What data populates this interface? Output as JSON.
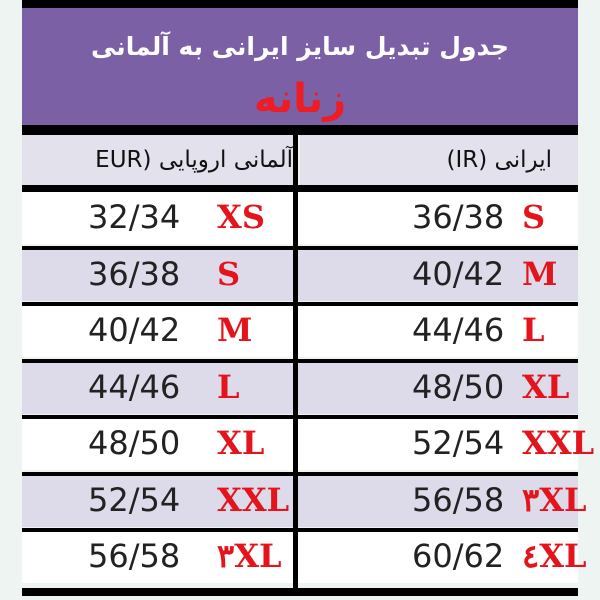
{
  "title": "جدول تبدیل سایز ایرانی به آلمانی",
  "subtitle": "زنانه",
  "columns": {
    "german": "آلمانی اروپایی (EUR",
    "iranian": "ایرانی (IR)"
  },
  "rows": [
    {
      "german_size": "32/34",
      "german_label": "XS",
      "iran_size": "36/38",
      "iran_label": "S"
    },
    {
      "german_size": "36/38",
      "german_label": "S",
      "iran_size": "40/42",
      "iran_label": "M"
    },
    {
      "german_size": "40/42",
      "german_label": "M",
      "iran_size": "44/46",
      "iran_label": "L"
    },
    {
      "german_size": "44/46",
      "german_label": "L",
      "iran_size": "48/50",
      "iran_label": "XL"
    },
    {
      "german_size": "48/50",
      "german_label": "XL",
      "iran_size": "52/54",
      "iran_label": "XXL"
    },
    {
      "german_size": "52/54",
      "german_label": "XXL",
      "iran_size": "56/58",
      "iran_label": "۳XL"
    },
    {
      "german_size": "56/58",
      "german_label": "۳XL",
      "iran_size": "60/62",
      "iran_label": "٤XL"
    }
  ],
  "colors": {
    "header": "#7c60a6",
    "accent_red": "#ee1c24",
    "row_alt": "#dddbea"
  }
}
